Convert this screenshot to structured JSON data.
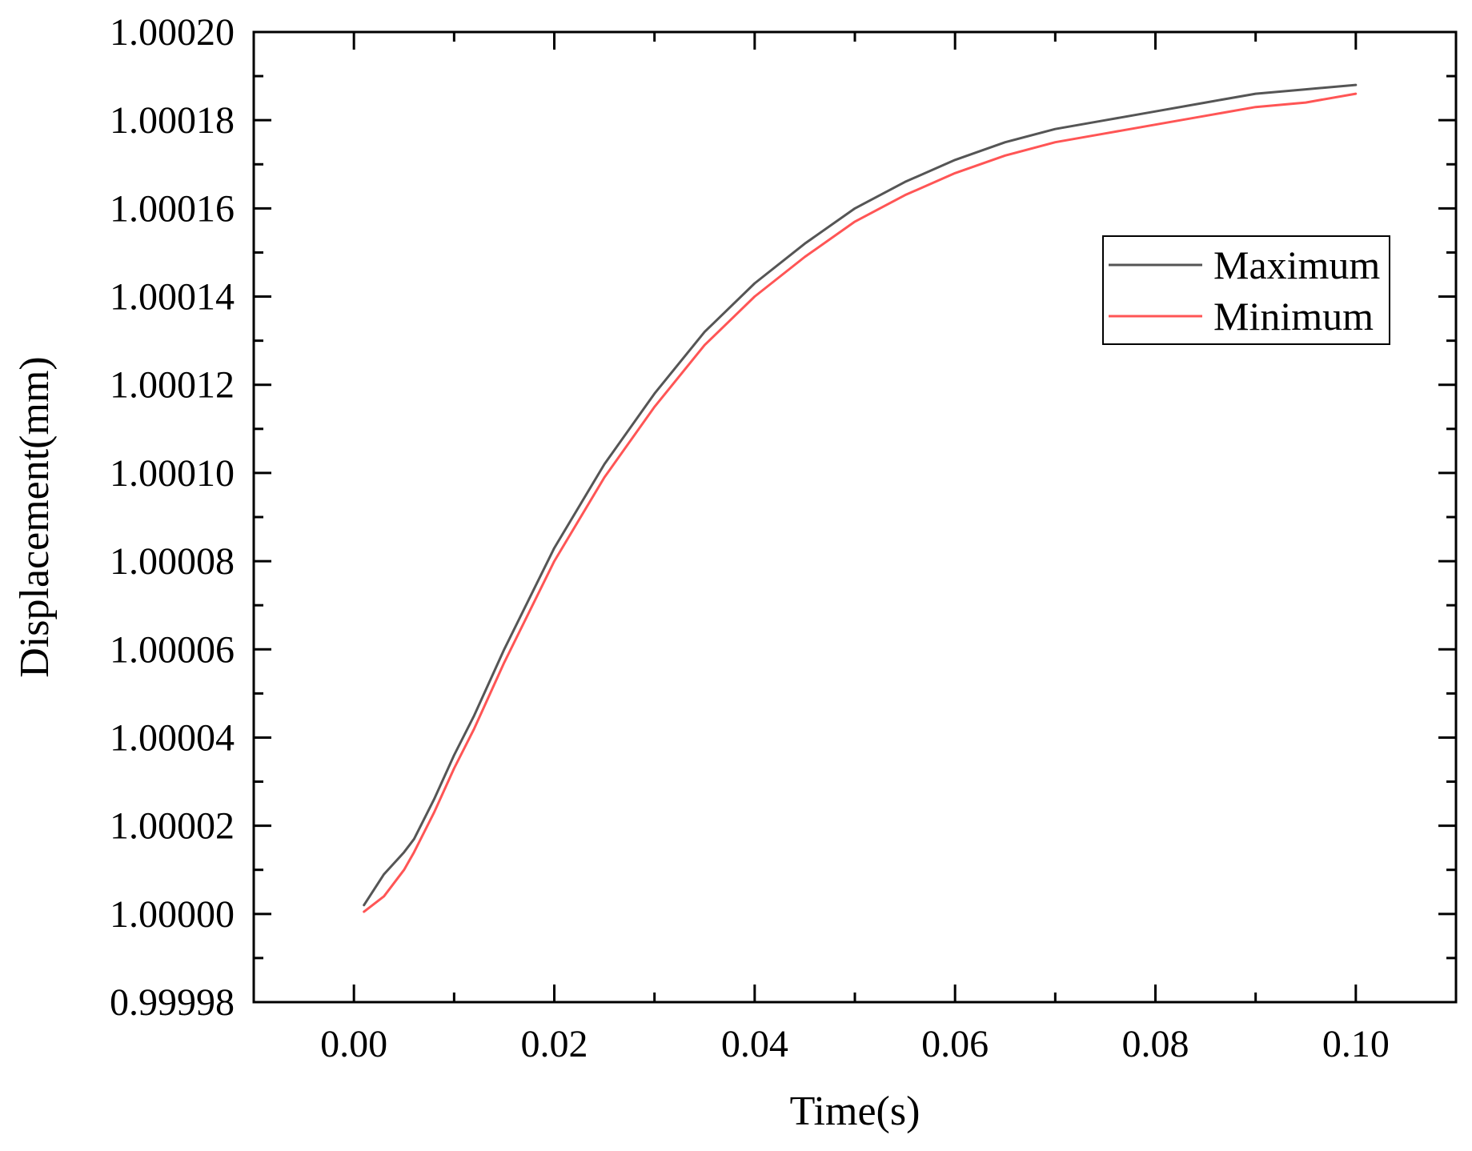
{
  "chart_data": {
    "type": "line",
    "title": "",
    "xlabel": "Time(s)",
    "ylabel": "Displacement(mm)",
    "xlim": [
      -0.01,
      0.11
    ],
    "ylim": [
      0.99998,
      1.0002
    ],
    "x_ticks": [
      0.0,
      0.02,
      0.04,
      0.06,
      0.08,
      0.1
    ],
    "x_tick_labels": [
      "0.00",
      "0.02",
      "0.04",
      "0.06",
      "0.08",
      "0.10"
    ],
    "y_ticks": [
      0.99998,
      1.0,
      1.00002,
      1.00004,
      1.00006,
      1.00008,
      1.0001,
      1.00012,
      1.00014,
      1.00016,
      1.00018,
      1.0002
    ],
    "y_tick_labels": [
      "0.99998",
      "1.00000",
      "1.00002",
      "1.00004",
      "1.00006",
      "1.00008",
      "1.00010",
      "1.00012",
      "1.00014",
      "1.00016",
      "1.00018",
      "1.00020"
    ],
    "grid": false,
    "legend_position": "top-right",
    "x": [
      0.001,
      0.003,
      0.005,
      0.006,
      0.008,
      0.01,
      0.012,
      0.015,
      0.02,
      0.025,
      0.03,
      0.035,
      0.04,
      0.045,
      0.05,
      0.055,
      0.06,
      0.065,
      0.07,
      0.075,
      0.08,
      0.085,
      0.09,
      0.095,
      0.1
    ],
    "series": [
      {
        "name": "Maximum",
        "color": "#555555",
        "values": [
          1.000002,
          1.000009,
          1.000014,
          1.000017,
          1.000026,
          1.000036,
          1.000045,
          1.00006,
          1.000083,
          1.000102,
          1.000118,
          1.000132,
          1.000143,
          1.000152,
          1.00016,
          1.000166,
          1.000171,
          1.000175,
          1.000178,
          1.00018,
          1.000182,
          1.000184,
          1.000186,
          1.000187,
          1.000188
        ]
      },
      {
        "name": "Minimum",
        "color": "#ff5555",
        "values": [
          1.0000005,
          1.000004,
          1.00001,
          1.000014,
          1.000023,
          1.000033,
          1.000042,
          1.000057,
          1.00008,
          1.000099,
          1.000115,
          1.000129,
          1.00014,
          1.000149,
          1.000157,
          1.000163,
          1.000168,
          1.000172,
          1.000175,
          1.000177,
          1.000179,
          1.000181,
          1.000183,
          1.000184,
          1.000186
        ]
      }
    ]
  }
}
